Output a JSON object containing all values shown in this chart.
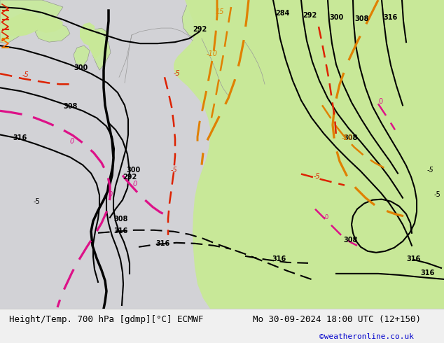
{
  "title_left": "Height/Temp. 700 hPa [gdmp][°C] ECMWF",
  "title_right": "Mo 30-09-2024 18:00 UTC (12+150)",
  "credit": "©weatheronline.co.uk",
  "bg_color": "#f0f0f0",
  "sea_color": "#d8d8dc",
  "land_color": "#c8e8a0",
  "mountain_color": "#a8c870",
  "title_fontsize": 9,
  "credit_fontsize": 8,
  "credit_color": "#0000cc",
  "bottom_bar_color": "#f0f0f0",
  "height_color": "#000000",
  "temp_orange_color": "#e08000",
  "temp_red_color": "#dd2200",
  "temp_magenta_color": "#dd1188"
}
